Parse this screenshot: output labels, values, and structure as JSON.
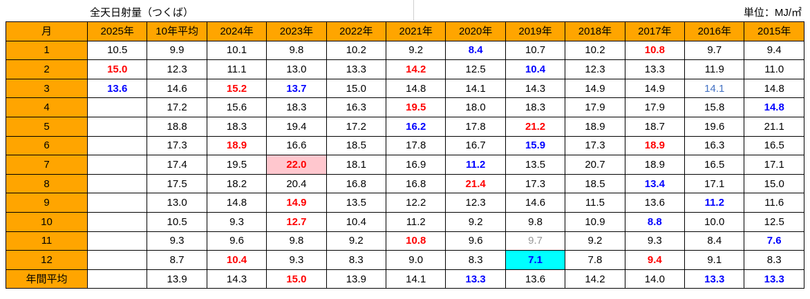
{
  "header": {
    "title": "全天日射量（つくば）",
    "unit": "単位：MJ/㎡"
  },
  "colors": {
    "header_bg": "#ffa500",
    "text": {
      "red": "#ff0000",
      "blue": "#0000ff",
      "blue2": "#4472c4",
      "gray": "#969696"
    },
    "fill": {
      "pink": "#ffc7ce",
      "cyan": "#00ffff"
    }
  },
  "chart_data": {
    "type": "table",
    "title": "全天日射量（つくば）",
    "unit_label": "単位：MJ/㎡",
    "columns": [
      "月",
      "2025年",
      "10年平均",
      "2024年",
      "2023年",
      "2022年",
      "2021年",
      "2020年",
      "2019年",
      "2018年",
      "2017年",
      "2016年",
      "2015年"
    ],
    "rows": [
      {
        "label": "1",
        "cells": [
          {
            "v": "10.5"
          },
          {
            "v": "9.9"
          },
          {
            "v": "10.1"
          },
          {
            "v": "9.8"
          },
          {
            "v": "10.2"
          },
          {
            "v": "9.2"
          },
          {
            "v": "8.4",
            "c": "blue"
          },
          {
            "v": "10.7"
          },
          {
            "v": "10.2"
          },
          {
            "v": "10.8",
            "c": "red"
          },
          {
            "v": "9.7"
          },
          {
            "v": "9.4"
          }
        ]
      },
      {
        "label": "2",
        "cells": [
          {
            "v": "15.0",
            "c": "red"
          },
          {
            "v": "12.3"
          },
          {
            "v": "11.1"
          },
          {
            "v": "13.0"
          },
          {
            "v": "13.3"
          },
          {
            "v": "14.2",
            "c": "red"
          },
          {
            "v": "12.5"
          },
          {
            "v": "10.4",
            "c": "blue"
          },
          {
            "v": "12.3"
          },
          {
            "v": "13.3"
          },
          {
            "v": "11.9"
          },
          {
            "v": "11.0"
          }
        ]
      },
      {
        "label": "3",
        "cells": [
          {
            "v": "13.6",
            "c": "blue"
          },
          {
            "v": "14.6"
          },
          {
            "v": "15.2",
            "c": "red"
          },
          {
            "v": "13.7",
            "c": "blue"
          },
          {
            "v": "15.0"
          },
          {
            "v": "14.8"
          },
          {
            "v": "14.1"
          },
          {
            "v": "14.3"
          },
          {
            "v": "14.9"
          },
          {
            "v": "14.9"
          },
          {
            "v": "14.1",
            "c": "blue2"
          },
          {
            "v": "14.8"
          }
        ]
      },
      {
        "label": "4",
        "cells": [
          {
            "v": ""
          },
          {
            "v": "17.2"
          },
          {
            "v": "15.6"
          },
          {
            "v": "18.3"
          },
          {
            "v": "16.3"
          },
          {
            "v": "19.5",
            "c": "red"
          },
          {
            "v": "18.0"
          },
          {
            "v": "18.3"
          },
          {
            "v": "17.9"
          },
          {
            "v": "17.9"
          },
          {
            "v": "15.8"
          },
          {
            "v": "14.8",
            "c": "blue"
          }
        ]
      },
      {
        "label": "5",
        "cells": [
          {
            "v": ""
          },
          {
            "v": "18.8"
          },
          {
            "v": "18.3"
          },
          {
            "v": "19.4"
          },
          {
            "v": "17.2"
          },
          {
            "v": "16.2",
            "c": "blue"
          },
          {
            "v": "17.8"
          },
          {
            "v": "21.2",
            "c": "red"
          },
          {
            "v": "18.9"
          },
          {
            "v": "18.7"
          },
          {
            "v": "19.6"
          },
          {
            "v": "21.1"
          }
        ]
      },
      {
        "label": "6",
        "cells": [
          {
            "v": ""
          },
          {
            "v": "17.3"
          },
          {
            "v": "18.9",
            "c": "red"
          },
          {
            "v": "16.6"
          },
          {
            "v": "18.5"
          },
          {
            "v": "17.8"
          },
          {
            "v": "16.7"
          },
          {
            "v": "15.9",
            "c": "blue"
          },
          {
            "v": "17.3"
          },
          {
            "v": "18.9",
            "c": "red"
          },
          {
            "v": "16.3"
          },
          {
            "v": "16.5"
          }
        ]
      },
      {
        "label": "7",
        "cells": [
          {
            "v": ""
          },
          {
            "v": "17.4"
          },
          {
            "v": "19.5"
          },
          {
            "v": "22.0",
            "c": "red",
            "bg": "pink"
          },
          {
            "v": "18.1"
          },
          {
            "v": "16.9"
          },
          {
            "v": "11.2",
            "c": "blue"
          },
          {
            "v": "13.5"
          },
          {
            "v": "20.7"
          },
          {
            "v": "18.9"
          },
          {
            "v": "16.5"
          },
          {
            "v": "17.1"
          }
        ]
      },
      {
        "label": "8",
        "cells": [
          {
            "v": ""
          },
          {
            "v": "17.5"
          },
          {
            "v": "18.2"
          },
          {
            "v": "20.4"
          },
          {
            "v": "16.8"
          },
          {
            "v": "16.8"
          },
          {
            "v": "21.4",
            "c": "red"
          },
          {
            "v": "17.3"
          },
          {
            "v": "18.5"
          },
          {
            "v": "13.4",
            "c": "blue"
          },
          {
            "v": "17.1"
          },
          {
            "v": "15.0"
          }
        ]
      },
      {
        "label": "9",
        "cells": [
          {
            "v": ""
          },
          {
            "v": "13.0"
          },
          {
            "v": "14.8"
          },
          {
            "v": "14.9",
            "c": "red"
          },
          {
            "v": "13.5"
          },
          {
            "v": "12.2"
          },
          {
            "v": "12.3"
          },
          {
            "v": "14.6"
          },
          {
            "v": "11.5"
          },
          {
            "v": "13.6"
          },
          {
            "v": "11.2",
            "c": "blue"
          },
          {
            "v": "11.6"
          }
        ]
      },
      {
        "label": "10",
        "cells": [
          {
            "v": ""
          },
          {
            "v": "10.5"
          },
          {
            "v": "9.3"
          },
          {
            "v": "12.7",
            "c": "red"
          },
          {
            "v": "10.4"
          },
          {
            "v": "11.2"
          },
          {
            "v": "9.2"
          },
          {
            "v": "9.8"
          },
          {
            "v": "10.9"
          },
          {
            "v": "8.8",
            "c": "blue"
          },
          {
            "v": "10.0"
          },
          {
            "v": "12.5"
          }
        ]
      },
      {
        "label": "11",
        "cells": [
          {
            "v": ""
          },
          {
            "v": "9.3"
          },
          {
            "v": "9.6"
          },
          {
            "v": "9.8"
          },
          {
            "v": "9.2"
          },
          {
            "v": "10.8",
            "c": "red"
          },
          {
            "v": "9.6"
          },
          {
            "v": "9.7",
            "c": "gray"
          },
          {
            "v": "9.2"
          },
          {
            "v": "9.3"
          },
          {
            "v": "8.4"
          },
          {
            "v": "7.6",
            "c": "blue"
          }
        ]
      },
      {
        "label": "12",
        "cells": [
          {
            "v": ""
          },
          {
            "v": "8.7"
          },
          {
            "v": "10.4",
            "c": "red"
          },
          {
            "v": "9.3"
          },
          {
            "v": "8.3"
          },
          {
            "v": "9.0"
          },
          {
            "v": "8.3"
          },
          {
            "v": "7.1",
            "c": "blue",
            "bg": "cyan"
          },
          {
            "v": "7.8"
          },
          {
            "v": "9.4",
            "c": "red"
          },
          {
            "v": "9.1"
          },
          {
            "v": "8.3"
          }
        ]
      },
      {
        "label": "年間平均",
        "cells": [
          {
            "v": ""
          },
          {
            "v": "13.9"
          },
          {
            "v": "14.3"
          },
          {
            "v": "15.0",
            "c": "red"
          },
          {
            "v": "13.9"
          },
          {
            "v": "14.1"
          },
          {
            "v": "13.3",
            "c": "blue"
          },
          {
            "v": "13.6"
          },
          {
            "v": "14.2"
          },
          {
            "v": "14.0"
          },
          {
            "v": "13.3",
            "c": "blue"
          },
          {
            "v": "13.3",
            "c": "blue"
          }
        ]
      }
    ]
  }
}
